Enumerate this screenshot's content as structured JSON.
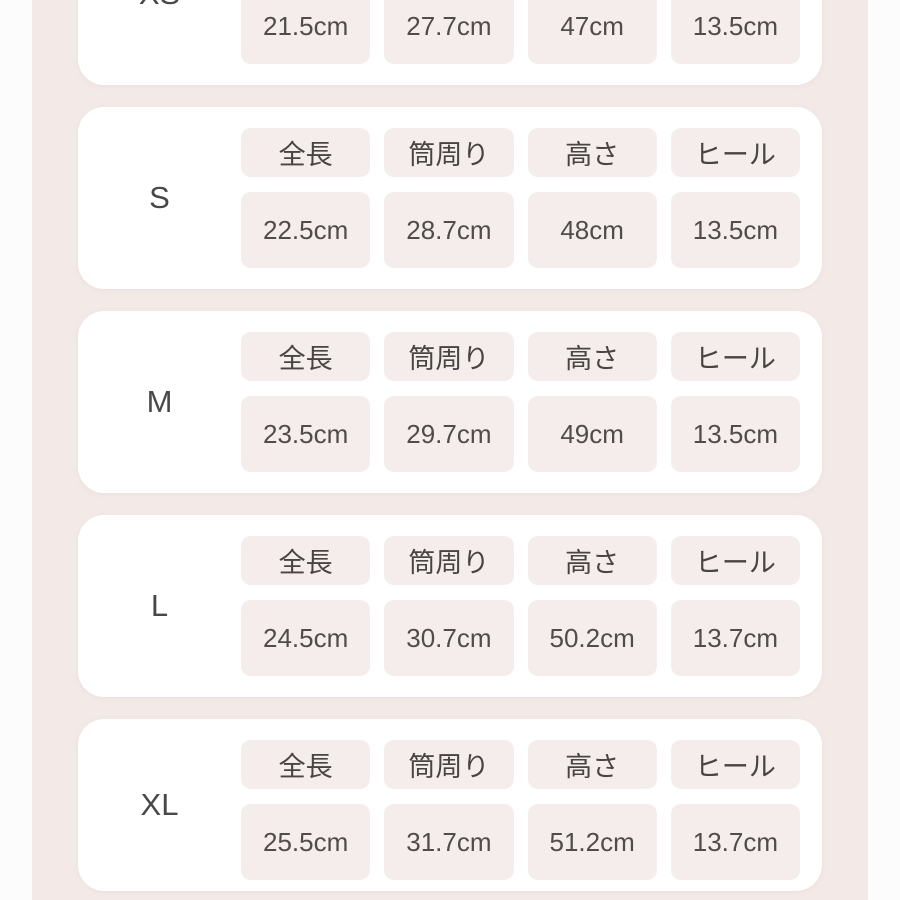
{
  "colors": {
    "outer_background": "#fdfcfc",
    "page_background": "#f3eae7",
    "card_background": "#ffffff",
    "cell_background": "#f5edeb",
    "text": "#4d4a49"
  },
  "size_chart": {
    "columns": [
      "全長",
      "筒周り",
      "高さ",
      "ヒール"
    ],
    "rows": [
      {
        "size": "XS",
        "values": [
          "21.5cm",
          "27.7cm",
          "47cm",
          "13.5cm"
        ]
      },
      {
        "size": "S",
        "values": [
          "22.5cm",
          "28.7cm",
          "48cm",
          "13.5cm"
        ]
      },
      {
        "size": "M",
        "values": [
          "23.5cm",
          "29.7cm",
          "49cm",
          "13.5cm"
        ]
      },
      {
        "size": "L",
        "values": [
          "24.5cm",
          "30.7cm",
          "50.2cm",
          "13.7cm"
        ]
      },
      {
        "size": "XL",
        "values": [
          "25.5cm",
          "31.7cm",
          "51.2cm",
          "13.7cm"
        ]
      }
    ]
  }
}
